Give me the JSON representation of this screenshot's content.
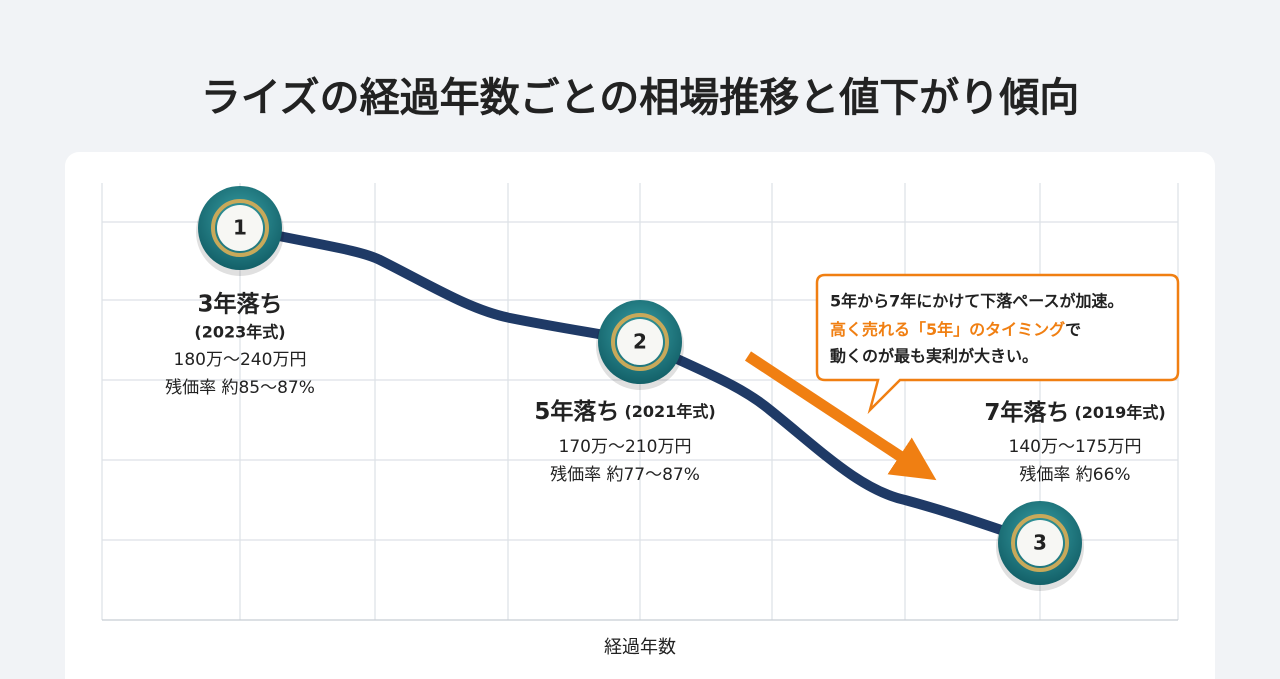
{
  "header": {
    "title": "ライズの経過年数ごとの相場推移と値下がり傾向"
  },
  "x_axis_label": "経過年数",
  "points": [
    {
      "number": "1",
      "heading": "3年落ち",
      "model_year": "(2023年式)",
      "price": "180万〜240万円",
      "residual": "残価率 約85〜87%"
    },
    {
      "number": "2",
      "heading": "5年落ち",
      "model_year": "(2021年式)",
      "price": "170万〜210万円",
      "residual": "残価率 約77〜87%"
    },
    {
      "number": "3",
      "heading": "7年落ち",
      "model_year": "(2019年式)",
      "price": "140万〜175万円",
      "residual": "残価率 約66%"
    }
  ],
  "callout": {
    "line1": "5年から7年にかけて下落ペースが加速。",
    "line2_highlight": "高く売れる「5年」のタイミング",
    "line2_rest": "で",
    "line3": "動くのが最も実利が大きい。"
  }
}
